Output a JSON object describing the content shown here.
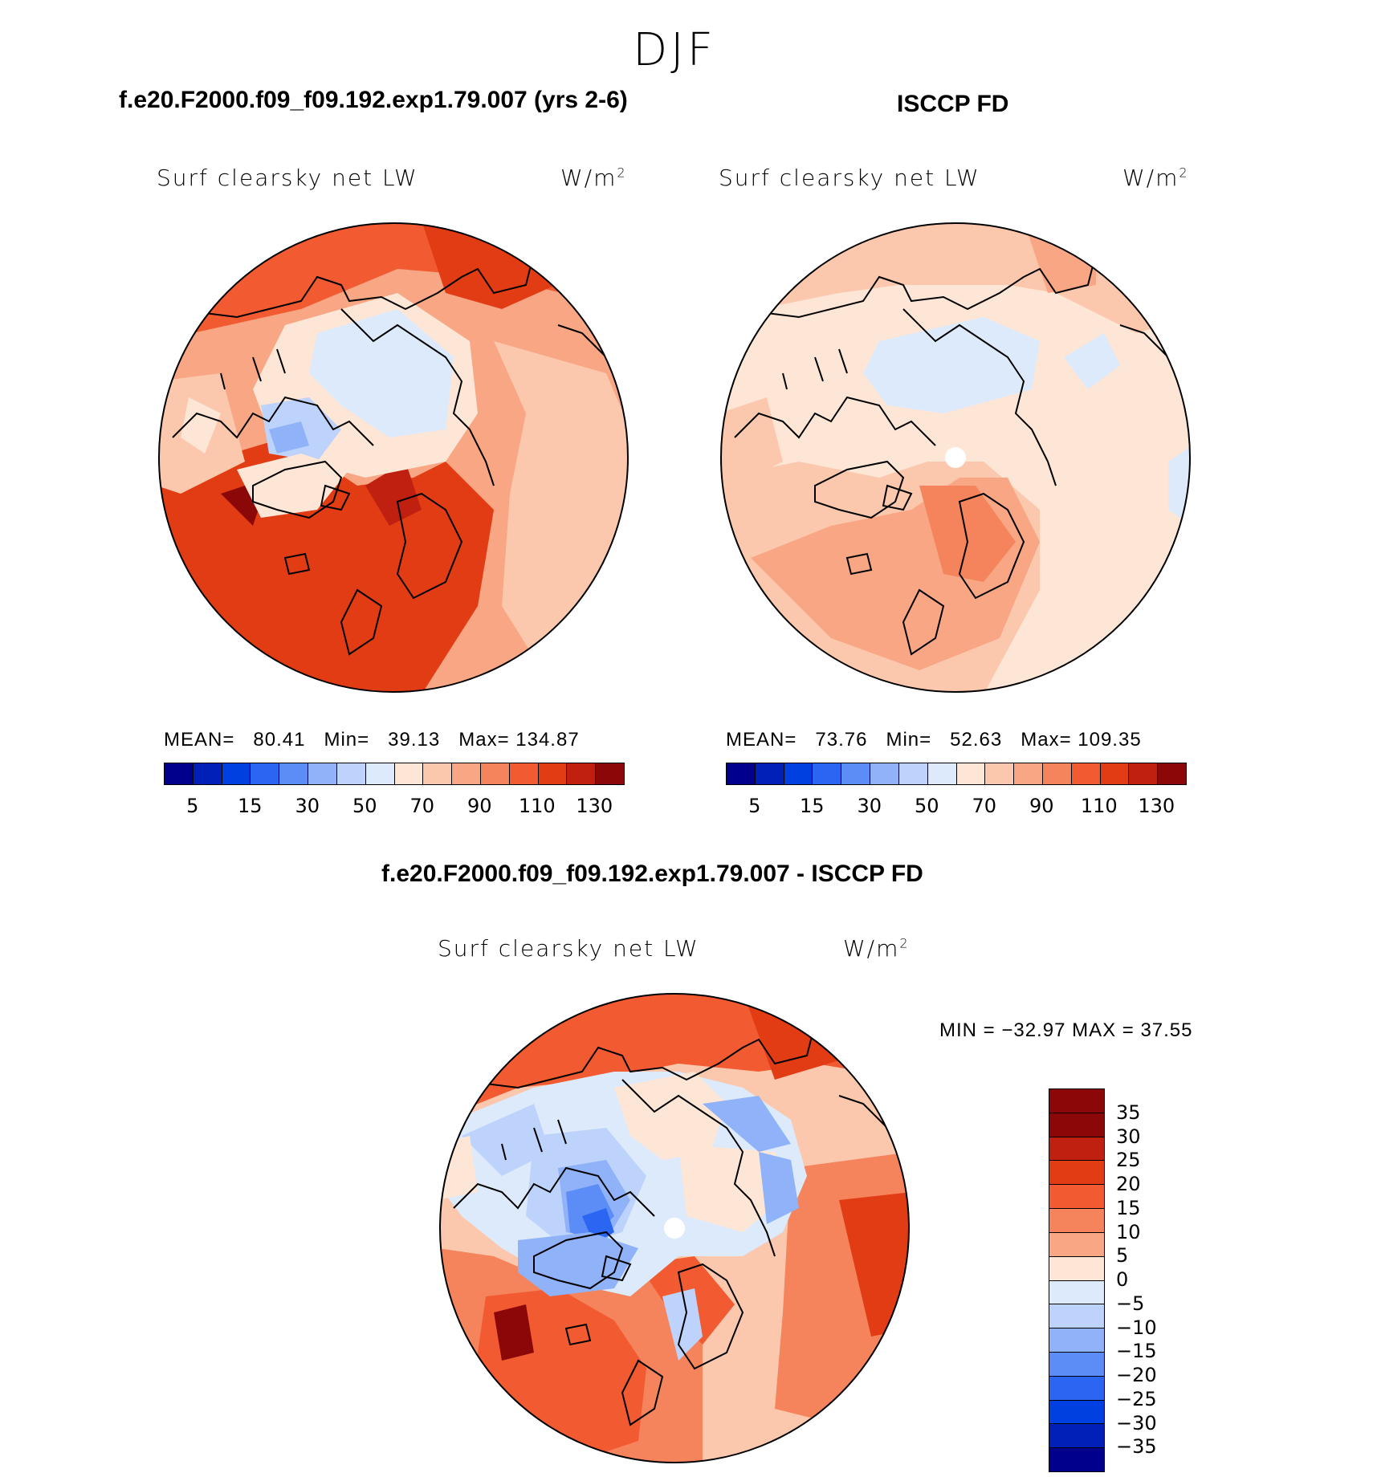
{
  "title": "DJF",
  "panels": [
    {
      "id": "model",
      "title": "f.e20.F2000.f09_f09.192.exp1.79.007 (yrs 2-6)",
      "variable": "Surf clearsky net LW",
      "units": "W/m",
      "units_sup": "2",
      "stats": {
        "mean_label": "MEAN=",
        "mean": "80.41",
        "min_label": "Min=",
        "min": "39.13",
        "max_label": "Max=",
        "max": "134.87"
      },
      "colorbar_ticks": [
        "5",
        "15",
        "30",
        "50",
        "70",
        "90",
        "110",
        "130"
      ]
    },
    {
      "id": "obs",
      "title": "ISCCP FD",
      "variable": "Surf clearsky net LW",
      "units": "W/m",
      "units_sup": "2",
      "stats": {
        "mean_label": "MEAN=",
        "mean": "73.76",
        "min_label": "Min=",
        "min": "52.63",
        "max_label": "Max=",
        "max": "109.35"
      },
      "colorbar_ticks": [
        "5",
        "15",
        "30",
        "50",
        "70",
        "90",
        "110",
        "130"
      ]
    }
  ],
  "diff_panel": {
    "title": "f.e20.F2000.f09_f09.192.exp1.79.007 - ISCCP FD",
    "variable": "Surf clearsky net LW",
    "units": "W/m",
    "units_sup": "2",
    "minmax": "MIN = −32.97 MAX =   37.55",
    "colorbar_ticks": [
      "35",
      "30",
      "25",
      "20",
      "15",
      "10",
      "5",
      "0",
      "−5",
      "−10",
      "−15",
      "−20",
      "−25",
      "−30",
      "−35"
    ]
  },
  "colors": {
    "abs_scale": [
      "#00008c",
      "#0020b8",
      "#0040e0",
      "#2a66f2",
      "#5c8cf5",
      "#8fb2f8",
      "#bdd3fb",
      "#ddeafc",
      "#fde6d6",
      "#fbc8ad",
      "#f8a683",
      "#f5845c",
      "#f25a32",
      "#e23c14",
      "#c02010",
      "#8c0808"
    ],
    "diff_scale": [
      "#8c0808",
      "#c02010",
      "#e23c14",
      "#f25a32",
      "#f5845c",
      "#f8a683",
      "#fde6d6",
      "#ddeafc",
      "#bdd3fb",
      "#8fb2f8",
      "#5c8cf5",
      "#2a66f2",
      "#0040e0",
      "#0020b8",
      "#00008c"
    ]
  }
}
